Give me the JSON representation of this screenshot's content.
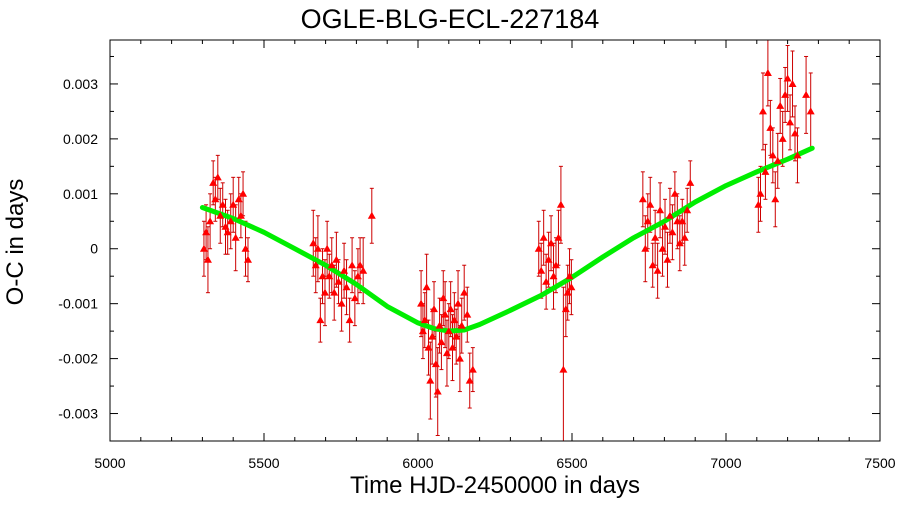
{
  "chart_data": {
    "type": "scatter",
    "title": "OGLE-BLG-ECL-227184",
    "xlabel": "Time HJD-2450000 in days",
    "ylabel": "O-C in days",
    "xlim": [
      5000,
      7500
    ],
    "ylim": [
      -0.0035,
      0.0038
    ],
    "xticks": [
      5000,
      5500,
      6000,
      6500,
      7000,
      7500
    ],
    "yticks": [
      -0.003,
      -0.002,
      -0.001,
      0,
      0.001,
      0.002,
      0.003
    ],
    "ytick_labels": [
      "-0.003",
      "-0.002",
      "-0.001",
      "0",
      "0.001",
      "0.002",
      "0.003"
    ],
    "grid": false,
    "legend": "none",
    "colors": {
      "points": "#ff0000",
      "errorbars": "#cc0000",
      "model": "#00ee00"
    },
    "series": [
      {
        "type": "errorbar-scatter",
        "points": [
          {
            "x": 5305,
            "y": 0.0,
            "err": 0.0005
          },
          {
            "x": 5312,
            "y": 0.0003,
            "err": 0.0005
          },
          {
            "x": 5318,
            "y": -0.0002,
            "err": 0.0006
          },
          {
            "x": 5325,
            "y": 0.0005,
            "err": 0.0005
          },
          {
            "x": 5335,
            "y": 0.0012,
            "err": 0.0004
          },
          {
            "x": 5342,
            "y": 0.0009,
            "err": 0.0004
          },
          {
            "x": 5350,
            "y": 0.0013,
            "err": 0.0004
          },
          {
            "x": 5358,
            "y": 0.0006,
            "err": 0.0005
          },
          {
            "x": 5366,
            "y": 0.0008,
            "err": 0.0004
          },
          {
            "x": 5375,
            "y": 0.0004,
            "err": 0.0005
          },
          {
            "x": 5382,
            "y": 0.0003,
            "err": 0.0004
          },
          {
            "x": 5392,
            "y": 0.0005,
            "err": 0.0005
          },
          {
            "x": 5400,
            "y": 0.0008,
            "err": 0.0005
          },
          {
            "x": 5408,
            "y": 0.0002,
            "err": 0.0006
          },
          {
            "x": 5418,
            "y": 0.0009,
            "err": 0.0004
          },
          {
            "x": 5425,
            "y": 0.0006,
            "err": 0.0004
          },
          {
            "x": 5432,
            "y": 0.001,
            "err": 0.0004
          },
          {
            "x": 5440,
            "y": 0.0,
            "err": 0.0005
          },
          {
            "x": 5448,
            "y": -0.0002,
            "err": 0.0004
          },
          {
            "x": 5660,
            "y": 0.0001,
            "err": 0.0006
          },
          {
            "x": 5668,
            "y": -0.0003,
            "err": 0.0005
          },
          {
            "x": 5675,
            "y": 0.0,
            "err": 0.0006
          },
          {
            "x": 5683,
            "y": -0.0013,
            "err": 0.0004
          },
          {
            "x": 5690,
            "y": -0.0005,
            "err": 0.0005
          },
          {
            "x": 5698,
            "y": -0.0008,
            "err": 0.0006
          },
          {
            "x": 5705,
            "y": 0.0,
            "err": 0.0005
          },
          {
            "x": 5712,
            "y": -0.0005,
            "err": 0.0004
          },
          {
            "x": 5720,
            "y": -0.0003,
            "err": 0.0005
          },
          {
            "x": 5728,
            "y": -0.0008,
            "err": 0.0005
          },
          {
            "x": 5735,
            "y": -0.0002,
            "err": 0.0005
          },
          {
            "x": 5742,
            "y": -0.0006,
            "err": 0.0004
          },
          {
            "x": 5752,
            "y": -0.001,
            "err": 0.0005
          },
          {
            "x": 5760,
            "y": -0.0004,
            "err": 0.0005
          },
          {
            "x": 5768,
            "y": -0.0007,
            "err": 0.0005
          },
          {
            "x": 5778,
            "y": -0.0013,
            "err": 0.0004
          },
          {
            "x": 5786,
            "y": -0.0003,
            "err": 0.0005
          },
          {
            "x": 5795,
            "y": -0.0009,
            "err": 0.0005
          },
          {
            "x": 5805,
            "y": -0.0005,
            "err": 0.0005
          },
          {
            "x": 5812,
            "y": -0.0003,
            "err": 0.0005
          },
          {
            "x": 5822,
            "y": -0.0004,
            "err": 0.0006
          },
          {
            "x": 5850,
            "y": 0.0006,
            "err": 0.0005
          },
          {
            "x": 6010,
            "y": -0.001,
            "err": 0.0006
          },
          {
            "x": 6016,
            "y": -0.0015,
            "err": 0.0005
          },
          {
            "x": 6022,
            "y": -0.0013,
            "err": 0.0005
          },
          {
            "x": 6028,
            "y": -0.0007,
            "err": 0.0006
          },
          {
            "x": 6034,
            "y": -0.0018,
            "err": 0.0005
          },
          {
            "x": 6040,
            "y": -0.0024,
            "err": 0.0007
          },
          {
            "x": 6046,
            "y": -0.0016,
            "err": 0.0005
          },
          {
            "x": 6052,
            "y": -0.0011,
            "err": 0.0005
          },
          {
            "x": 6058,
            "y": -0.0021,
            "err": 0.0006
          },
          {
            "x": 6064,
            "y": -0.0026,
            "err": 0.0008
          },
          {
            "x": 6070,
            "y": -0.0014,
            "err": 0.0005
          },
          {
            "x": 6076,
            "y": -0.0017,
            "err": 0.0005
          },
          {
            "x": 6082,
            "y": -0.0009,
            "err": 0.0005
          },
          {
            "x": 6088,
            "y": -0.0012,
            "err": 0.0006
          },
          {
            "x": 6094,
            "y": -0.0019,
            "err": 0.0006
          },
          {
            "x": 6100,
            "y": -0.0015,
            "err": 0.0005
          },
          {
            "x": 6106,
            "y": -0.0011,
            "err": 0.0005
          },
          {
            "x": 6112,
            "y": -0.0018,
            "err": 0.0006
          },
          {
            "x": 6118,
            "y": -0.0013,
            "err": 0.0005
          },
          {
            "x": 6124,
            "y": -0.0016,
            "err": 0.0005
          },
          {
            "x": 6130,
            "y": -0.001,
            "err": 0.0006
          },
          {
            "x": 6136,
            "y": -0.002,
            "err": 0.0006
          },
          {
            "x": 6142,
            "y": -0.0014,
            "err": 0.0005
          },
          {
            "x": 6150,
            "y": -0.0008,
            "err": 0.0005
          },
          {
            "x": 6160,
            "y": -0.0012,
            "err": 0.0005
          },
          {
            "x": 6168,
            "y": -0.0024,
            "err": 0.0005
          },
          {
            "x": 6178,
            "y": -0.0022,
            "err": 0.0004
          },
          {
            "x": 6392,
            "y": 0.0,
            "err": 0.0005
          },
          {
            "x": 6400,
            "y": -0.0004,
            "err": 0.0005
          },
          {
            "x": 6408,
            "y": 0.0002,
            "err": 0.0005
          },
          {
            "x": 6416,
            "y": -0.0006,
            "err": 0.0005
          },
          {
            "x": 6424,
            "y": -0.0002,
            "err": 0.0005
          },
          {
            "x": 6432,
            "y": 0.0001,
            "err": 0.0005
          },
          {
            "x": 6440,
            "y": -0.0005,
            "err": 0.0006
          },
          {
            "x": 6448,
            "y": -0.0003,
            "err": 0.0005
          },
          {
            "x": 6456,
            "y": 0.0002,
            "err": 0.0005
          },
          {
            "x": 6464,
            "y": 0.0008,
            "err": 0.0007
          },
          {
            "x": 6472,
            "y": -0.0022,
            "err": 0.0015
          },
          {
            "x": 6480,
            "y": -0.0011,
            "err": 0.0005
          },
          {
            "x": 6486,
            "y": -0.0008,
            "err": 0.0005
          },
          {
            "x": 6492,
            "y": -0.0005,
            "err": 0.0005
          },
          {
            "x": 6498,
            "y": -0.0007,
            "err": 0.0005
          },
          {
            "x": 6730,
            "y": 0.0009,
            "err": 0.0005
          },
          {
            "x": 6738,
            "y": 0.0,
            "err": 0.0006
          },
          {
            "x": 6746,
            "y": 0.0005,
            "err": 0.0005
          },
          {
            "x": 6754,
            "y": 0.0008,
            "err": 0.0005
          },
          {
            "x": 6762,
            "y": -0.0003,
            "err": 0.0004
          },
          {
            "x": 6770,
            "y": 0.0002,
            "err": 0.0005
          },
          {
            "x": 6778,
            "y": -0.0004,
            "err": 0.0005
          },
          {
            "x": 6786,
            "y": 0.0007,
            "err": 0.0005
          },
          {
            "x": 6794,
            "y": 0.0,
            "err": 0.0005
          },
          {
            "x": 6802,
            "y": 0.0004,
            "err": 0.0005
          },
          {
            "x": 6810,
            "y": -0.0002,
            "err": 0.0005
          },
          {
            "x": 6818,
            "y": 0.0006,
            "err": 0.0005
          },
          {
            "x": 6826,
            "y": 0.0003,
            "err": 0.0005
          },
          {
            "x": 6834,
            "y": 0.001,
            "err": 0.0004
          },
          {
            "x": 6842,
            "y": 0.0005,
            "err": 0.0005
          },
          {
            "x": 6850,
            "y": 0.0001,
            "err": 0.0005
          },
          {
            "x": 6858,
            "y": 0.0005,
            "err": 0.0004
          },
          {
            "x": 6866,
            "y": 0.0002,
            "err": 0.0005
          },
          {
            "x": 6874,
            "y": 0.0007,
            "err": 0.0004
          },
          {
            "x": 6884,
            "y": 0.0012,
            "err": 0.0004
          },
          {
            "x": 7105,
            "y": 0.0008,
            "err": 0.0005
          },
          {
            "x": 7112,
            "y": 0.001,
            "err": 0.0005
          },
          {
            "x": 7120,
            "y": 0.0025,
            "err": 0.0007
          },
          {
            "x": 7128,
            "y": 0.0014,
            "err": 0.0005
          },
          {
            "x": 7136,
            "y": 0.0032,
            "err": 0.0006
          },
          {
            "x": 7144,
            "y": 0.0022,
            "err": 0.0005
          },
          {
            "x": 7152,
            "y": 0.0017,
            "err": 0.0005
          },
          {
            "x": 7160,
            "y": 0.0009,
            "err": 0.0005
          },
          {
            "x": 7168,
            "y": 0.0016,
            "err": 0.0005
          },
          {
            "x": 7176,
            "y": 0.0026,
            "err": 0.0005
          },
          {
            "x": 7184,
            "y": 0.002,
            "err": 0.0005
          },
          {
            "x": 7192,
            "y": 0.0028,
            "err": 0.0005
          },
          {
            "x": 7200,
            "y": 0.0031,
            "err": 0.0006
          },
          {
            "x": 7208,
            "y": 0.0023,
            "err": 0.0005
          },
          {
            "x": 7216,
            "y": 0.003,
            "err": 0.0006
          },
          {
            "x": 7224,
            "y": 0.0021,
            "err": 0.0005
          },
          {
            "x": 7232,
            "y": 0.0017,
            "err": 0.0005
          },
          {
            "x": 7260,
            "y": 0.0028,
            "err": 0.0007
          },
          {
            "x": 7275,
            "y": 0.0025,
            "err": 0.0007
          }
        ]
      },
      {
        "type": "line",
        "points": [
          {
            "x": 5300,
            "y": 0.00075
          },
          {
            "x": 5400,
            "y": 0.00055
          },
          {
            "x": 5500,
            "y": 0.0003
          },
          {
            "x": 5600,
            "y": 0.0
          },
          {
            "x": 5700,
            "y": -0.0003
          },
          {
            "x": 5800,
            "y": -0.00065
          },
          {
            "x": 5900,
            "y": -0.00105
          },
          {
            "x": 6000,
            "y": -0.00135
          },
          {
            "x": 6050,
            "y": -0.00145
          },
          {
            "x": 6100,
            "y": -0.0015
          },
          {
            "x": 6150,
            "y": -0.00148
          },
          {
            "x": 6200,
            "y": -0.00138
          },
          {
            "x": 6300,
            "y": -0.00112
          },
          {
            "x": 6400,
            "y": -0.00085
          },
          {
            "x": 6500,
            "y": -0.00052
          },
          {
            "x": 6600,
            "y": -0.00015
          },
          {
            "x": 6700,
            "y": 0.0002
          },
          {
            "x": 6800,
            "y": 0.0005
          },
          {
            "x": 6900,
            "y": 0.00085
          },
          {
            "x": 7000,
            "y": 0.00115
          },
          {
            "x": 7100,
            "y": 0.0014
          },
          {
            "x": 7200,
            "y": 0.00163
          },
          {
            "x": 7280,
            "y": 0.00183
          }
        ]
      }
    ]
  }
}
